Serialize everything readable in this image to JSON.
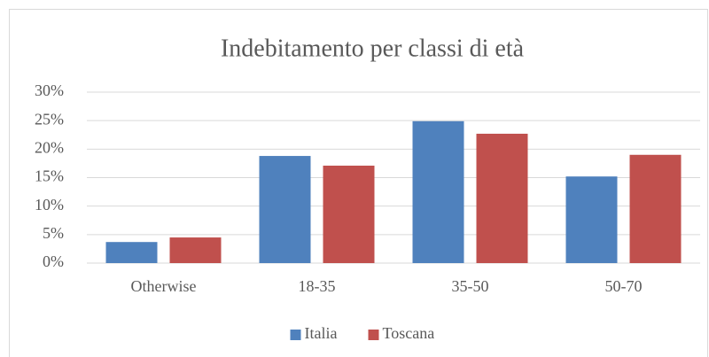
{
  "chart_data": {
    "type": "bar",
    "title": "Indebitamento per classi di età",
    "categories": [
      "Otherwise",
      "18-35",
      "35-50",
      "50-70"
    ],
    "series": [
      {
        "name": "Italia",
        "color": "#4f81bd",
        "values": [
          3.7,
          18.8,
          24.9,
          15.2
        ]
      },
      {
        "name": "Toscana",
        "color": "#c0504d",
        "values": [
          4.5,
          17.1,
          22.7,
          19.0
        ]
      }
    ],
    "ylim": [
      0,
      30
    ],
    "yticks": [
      {
        "value": 0,
        "label": "0%"
      },
      {
        "value": 5,
        "label": "5%"
      },
      {
        "value": 10,
        "label": "10%"
      },
      {
        "value": 15,
        "label": "15%"
      },
      {
        "value": 20,
        "label": "20%"
      },
      {
        "value": 25,
        "label": "25%"
      },
      {
        "value": 30,
        "label": "30%"
      }
    ],
    "grid": true,
    "legend": "bottom"
  }
}
